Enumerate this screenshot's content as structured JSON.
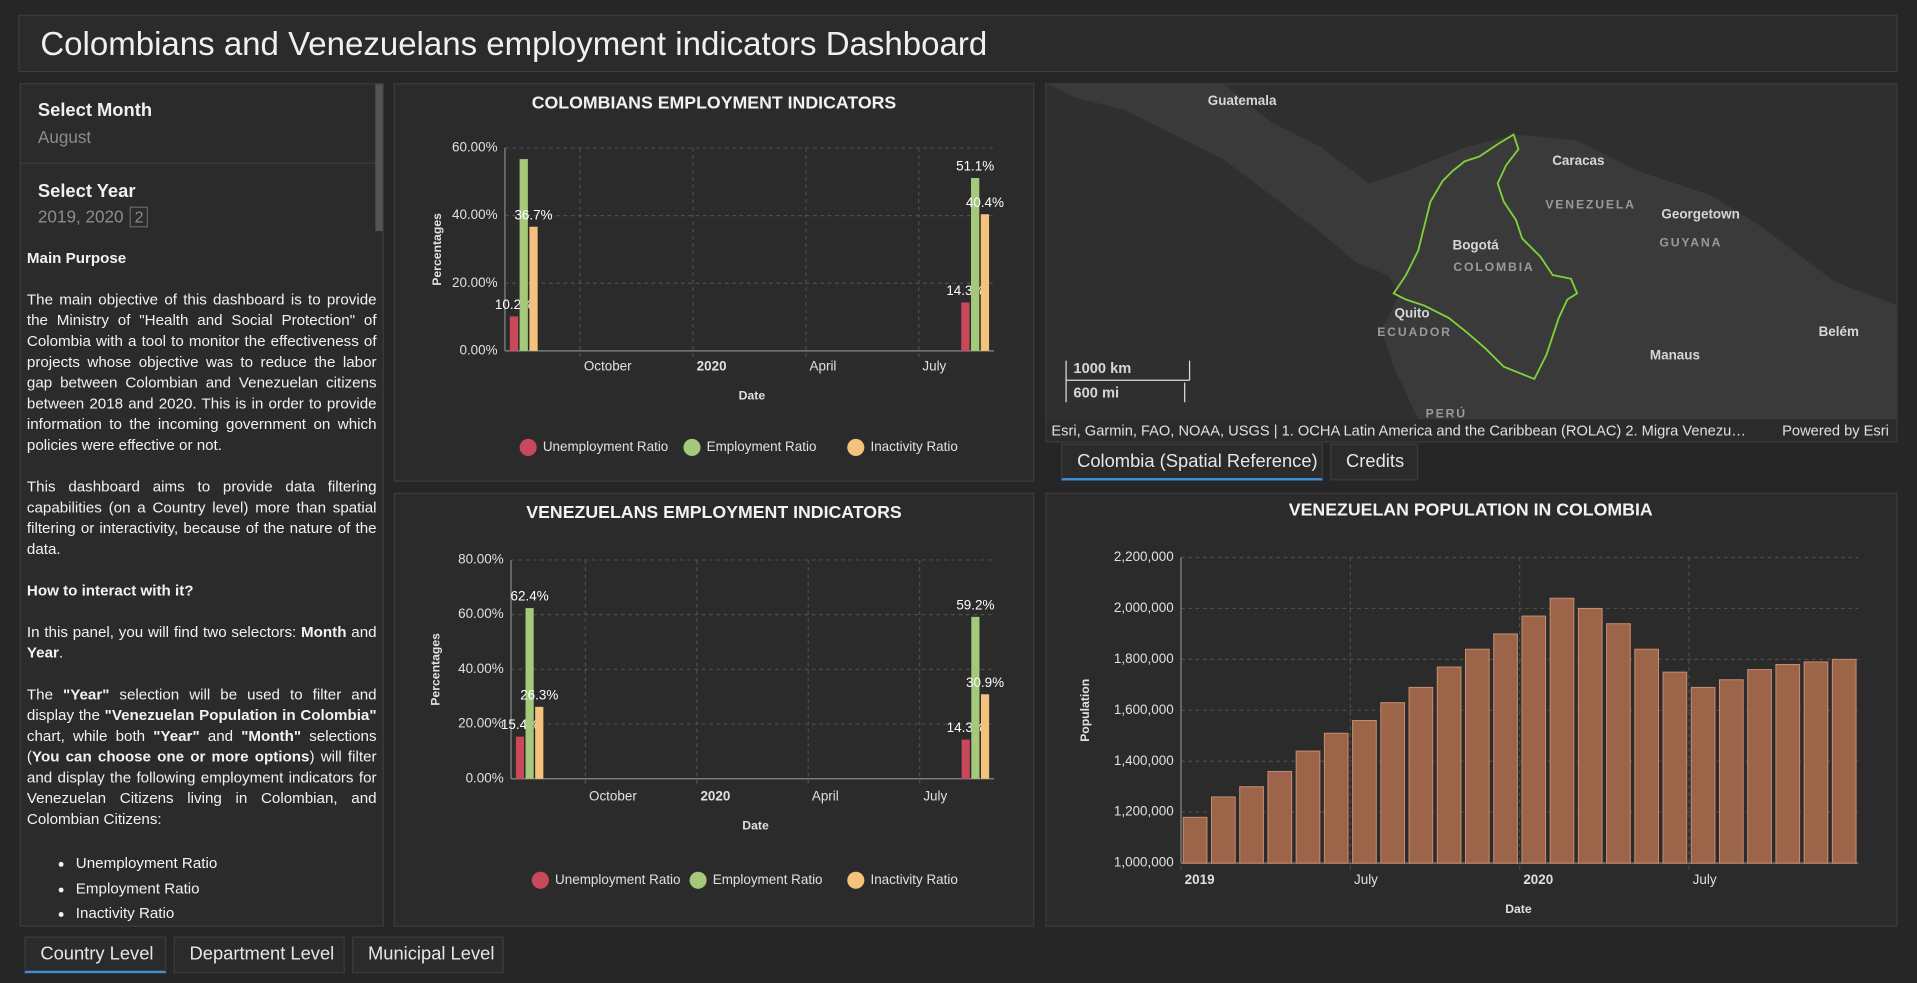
{
  "header": {
    "title": "Colombians and Venezuelans employment indicators Dashboard"
  },
  "sidebar": {
    "month_label": "Select Month",
    "month_value": "August",
    "year_label": "Select Year",
    "year_value": "2019, 2020",
    "year_count": 2,
    "paragraphs": [
      [
        {
          "text": "Main Purpose",
          "bold": true
        }
      ],
      [
        "The main objective of this dashboard is to provide the Ministry of \"Health and Social Protection\" of Colombia with a tool to monitor the effectiveness of projects whose objective was to reduce the labor gap between Colombian and Venezuelan citizens between 2018 and 2020. This is in order to provide information to the incoming government on which policies were effective or not."
      ],
      [
        "This dashboard aims to provide data filtering capabilities (on a Country level) more than spatial filtering or interactivity, because of the nature of the data."
      ],
      [
        {
          "text": "How to interact with it?",
          "bold": true
        }
      ],
      [
        "In this panel, you will find two selectors: ",
        {
          "text": "Month",
          "bold": true
        },
        " and ",
        {
          "text": "Year",
          "bold": true
        },
        "."
      ],
      [
        "The ",
        {
          "text": "\"Year\"",
          "bold": true
        },
        " selection will be used to filter and display the ",
        {
          "text": "\"Venezuelan Population in Colombia\"",
          "bold": true
        },
        " chart, while both ",
        {
          "text": "\"Year\"",
          "bold": true
        },
        " and ",
        {
          "text": "\"Month\"",
          "bold": true
        },
        "  selections (",
        {
          "text": "You can choose one or more options",
          "bold": true
        },
        ") will filter and display the following employment indicators for Venezuelan Citizens living in Colombian, and Colombian Citizens:"
      ]
    ],
    "list": [
      "Unemployment Ratio",
      "Employment Ratio",
      "Inactivity Ratio"
    ]
  },
  "chart_data": [
    {
      "type": "bar",
      "title": "COLOMBIANS EMPLOYMENT INDICATORS",
      "x_label": "Date",
      "y_label": "Percentages",
      "x": [
        "2019-08",
        "2020-08"
      ],
      "xlim": [
        "2019-08",
        "2020-09"
      ],
      "xticks": [
        {
          "value": "2019-10",
          "label": "October"
        },
        {
          "value": "2020-01",
          "label": "2020"
        },
        {
          "value": "2020-04",
          "label": "April"
        },
        {
          "value": "2020-07",
          "label": "July"
        }
      ],
      "ylim": [
        0,
        60
      ],
      "yticks": [
        {
          "value": 0,
          "label": "0.00%"
        },
        {
          "value": 20,
          "label": "20.00%"
        },
        {
          "value": 40,
          "label": "40.00%"
        },
        {
          "value": 60,
          "label": "60.00%"
        }
      ],
      "grid": true,
      "series": [
        {
          "name": "Unemployment Ratio",
          "color": "#c9485b",
          "values": [
            10.2,
            14.3
          ],
          "value_labels": [
            "10.2%",
            "14.3%"
          ]
        },
        {
          "name": "Employment Ratio",
          "color": "#a4c97b",
          "values": [
            56.7,
            51.1
          ],
          "value_labels": [
            null,
            "51.1%"
          ]
        },
        {
          "name": "Inactivity Ratio",
          "color": "#f4c27a",
          "values": [
            36.7,
            40.4
          ],
          "value_labels": [
            "36.7%",
            "40.4%"
          ]
        }
      ]
    },
    {
      "type": "bar",
      "title": "VENEZUELANS EMPLOYMENT INDICATORS",
      "x_label": "Date",
      "y_label": "Percentages",
      "x": [
        "2019-08",
        "2020-08"
      ],
      "xlim": [
        "2019-08",
        "2020-09"
      ],
      "xticks": [
        {
          "value": "2019-10",
          "label": "October"
        },
        {
          "value": "2020-01",
          "label": "2020"
        },
        {
          "value": "2020-04",
          "label": "April"
        },
        {
          "value": "2020-07",
          "label": "July"
        }
      ],
      "ylim": [
        0,
        80
      ],
      "yticks": [
        {
          "value": 0,
          "label": "0.00%"
        },
        {
          "value": 20,
          "label": "20.00%"
        },
        {
          "value": 40,
          "label": "40.00%"
        },
        {
          "value": 60,
          "label": "60.00%"
        },
        {
          "value": 80,
          "label": "80.00%"
        }
      ],
      "grid": true,
      "series": [
        {
          "name": "Unemployment Ratio",
          "color": "#c9485b",
          "values": [
            15.4,
            14.3
          ],
          "value_labels": [
            "15.4%",
            "14.3%"
          ]
        },
        {
          "name": "Employment Ratio",
          "color": "#a4c97b",
          "values": [
            62.4,
            59.2
          ],
          "value_labels": [
            "62.4%",
            "59.2%"
          ]
        },
        {
          "name": "Inactivity Ratio",
          "color": "#f4c27a",
          "values": [
            26.3,
            30.9
          ],
          "value_labels": [
            "26.3%",
            "30.9%"
          ]
        }
      ]
    },
    {
      "type": "bar",
      "title": "VENEZUELAN POPULATION IN COLOMBIA",
      "x_label": "Date",
      "y_label": "Population",
      "color": "#9c6448",
      "x": [
        "2019-01",
        "2019-02",
        "2019-03",
        "2019-04",
        "2019-05",
        "2019-06",
        "2019-07",
        "2019-08",
        "2019-09",
        "2019-10",
        "2019-11",
        "2019-12",
        "2020-01",
        "2020-02",
        "2020-03",
        "2020-04",
        "2020-05",
        "2020-06",
        "2020-07",
        "2020-08",
        "2020-09",
        "2020-10",
        "2020-11",
        "2020-12"
      ],
      "values": [
        1180000,
        1260000,
        1300000,
        1360000,
        1440000,
        1510000,
        1560000,
        1630000,
        1690000,
        1770000,
        1840000,
        1900000,
        1970000,
        2040000,
        2000000,
        1940000,
        1840000,
        1750000,
        1690000,
        1720000,
        1760000,
        1780000,
        1790000,
        1800000
      ],
      "xlim": [
        "2019-01",
        "2021-01"
      ],
      "xticks": [
        {
          "value": "2019-01",
          "label": "2019"
        },
        {
          "value": "2019-07",
          "label": "July"
        },
        {
          "value": "2020-01",
          "label": "2020"
        },
        {
          "value": "2020-07",
          "label": "July"
        }
      ],
      "ylim": [
        1000000,
        2200000
      ],
      "yticks": [
        {
          "value": 1000000,
          "label": "1,000,000"
        },
        {
          "value": 1200000,
          "label": "1,200,000"
        },
        {
          "value": 1400000,
          "label": "1,400,000"
        },
        {
          "value": 1600000,
          "label": "1,600,000"
        },
        {
          "value": 1800000,
          "label": "1,800,000"
        },
        {
          "value": 2000000,
          "label": "2,000,000"
        },
        {
          "value": 2200000,
          "label": "2,200,000"
        }
      ],
      "grid": true
    }
  ],
  "map": {
    "labels": [
      "Guatemala",
      "Caracas",
      "VENEZUELA",
      "Georgetown",
      "GUYANA",
      "Bogotá",
      "COLOMBIA",
      "Quito",
      "ECUADOR",
      "Belém",
      "Manaus",
      "PERÚ"
    ],
    "scale": [
      "1000 km",
      "600 mi"
    ],
    "attribution": "Esri, Garmin, FAO, NOAA, USGS | 1. OCHA Latin America and the Caribbean (ROLAC) 2. Migra Venezu…",
    "powered_by": "Powered by Esri",
    "tabs": [
      "Colombia (Spatial Reference)",
      "Credits"
    ]
  },
  "tabs": [
    "Country Level",
    "Department Level",
    "Municipal Level"
  ]
}
